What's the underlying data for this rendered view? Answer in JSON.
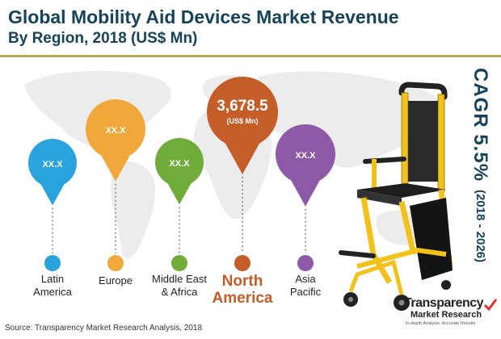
{
  "header": {
    "title": "Global Mobility Aid Devices Market Revenue",
    "subtitle": "By Region, 2018 (US$ Mn)"
  },
  "chart_data": {
    "type": "map-pins",
    "title": "Global Mobility Aid Devices Market Revenue",
    "subtitle": "By Region, 2018 (US$ Mn)",
    "categories": [
      "Latin America",
      "Europe",
      "Middle East & Africa",
      "North America",
      "Asia Pacific"
    ],
    "value_labels": [
      "XX.X",
      "XX.X",
      "XX.X",
      "3,678.5",
      "XX.X"
    ],
    "values": [
      null,
      null,
      null,
      3678.5,
      null
    ],
    "unit_label": "(US$ Mn)",
    "highlight": "North America",
    "colors": [
      "#29a3dd",
      "#f0a83b",
      "#70ac3a",
      "#c45d27",
      "#8e5aa8"
    ]
  },
  "regions": [
    {
      "name_lines": [
        "Latin",
        "America"
      ],
      "value": "XX.X",
      "color": "#29a3dd"
    },
    {
      "name_lines": [
        "Europe"
      ],
      "value": "XX.X",
      "color": "#f0a83b"
    },
    {
      "name_lines": [
        "Middle East",
        "& Africa"
      ],
      "value": "XX.X",
      "color": "#70ac3a"
    },
    {
      "name_lines": [
        "North",
        "America"
      ],
      "value": "3,678.5",
      "unit": "(US$ Mn)",
      "color": "#c45d27",
      "highlight": true
    },
    {
      "name_lines": [
        "Asia",
        "Pacific"
      ],
      "value": "XX.X",
      "color": "#8e5aa8"
    }
  ],
  "cagr": {
    "label": "CAGR 5.5%",
    "period": "(2018 - 2026)"
  },
  "source": "Source: Transparency Market Research Analysis, 2018",
  "logo": {
    "line1": "Transparency",
    "line2": "Market Research",
    "tagline": "In-depth Analysis. Accurate Results"
  },
  "colors": {
    "title": "#16435a",
    "rule": "#b9a84e",
    "map": "#e9e9e9"
  }
}
